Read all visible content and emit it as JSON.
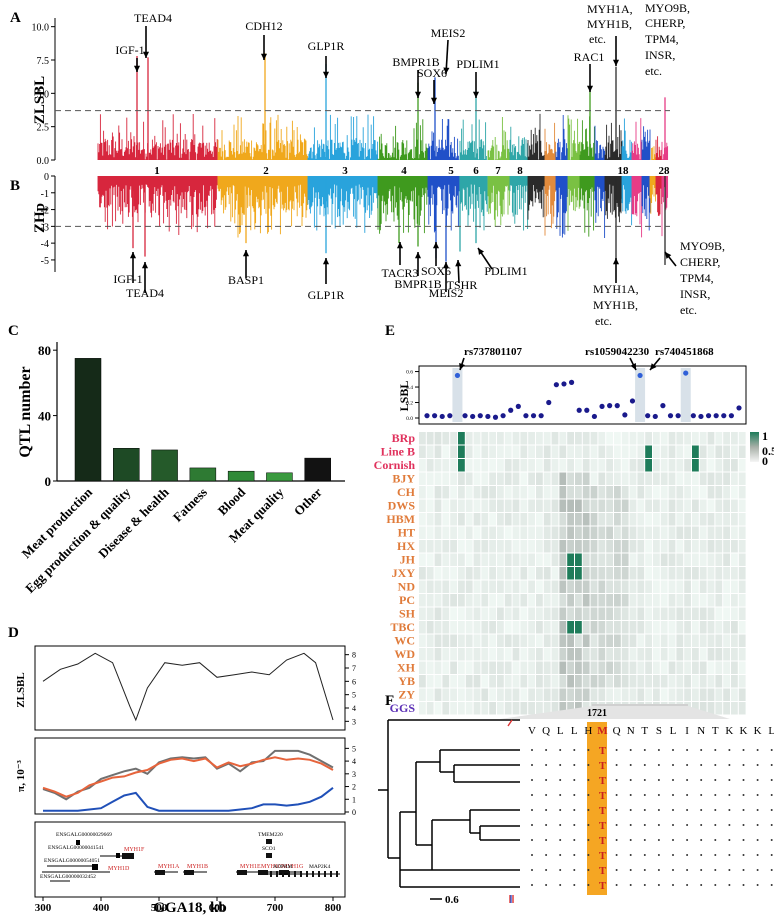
{
  "panels": {
    "a": "A",
    "b": "B",
    "c": "C",
    "d": "D",
    "e": "E",
    "f": "F"
  },
  "colors": {
    "chr": [
      "#d7263d",
      "#f0a81c",
      "#29a3dc",
      "#3f9a1e",
      "#2050c8",
      "#2ea6a8",
      "#7ac143",
      "#2b2b2b",
      "#e28b3c",
      "#7ac143",
      "#e63c86",
      "#1f2bd0",
      "#ff9a2e",
      "#7b4ea3"
    ],
    "dark_green": "#152a18",
    "heat_high": "#1e7c5a",
    "pink_label": "#e0315c",
    "orange_label": "#e07b3a",
    "purple_label": "#5b2fb5",
    "gene_red": "#cc2020",
    "blue_line": "#2050b8",
    "red_line": "#e6643c",
    "grey_line": "#707070",
    "highlight": "#f5a623"
  },
  "panel_a": {
    "ylabel": "ZLSBL",
    "yticks": [
      "0.0",
      "2.5",
      "5.0",
      "7.5",
      "10.0"
    ],
    "threshold": 3.7,
    "chromosomes": [
      "1",
      "2",
      "3",
      "4",
      "5",
      "6",
      "7",
      "8",
      "18",
      "28"
    ],
    "annotations": [
      "TEAD4",
      "IGF-1",
      "CDH12",
      "GLP1R",
      "MEIS2",
      "BMPR1B",
      "PDLIM1",
      "SOX6",
      "RAC1",
      "MYH1A,",
      "MYH1B,",
      "etc.",
      "MYO9B,",
      "CHERP,",
      "TPM4,",
      "INSR,",
      "etc."
    ]
  },
  "panel_b": {
    "ylabel": "ZHp",
    "yticks": [
      "0",
      "-1",
      "-2",
      "-3",
      "-4",
      "-5"
    ],
    "threshold": -3.0,
    "annotations": [
      "IGF-1",
      "TEAD4",
      "BASP1",
      "GLP1R",
      "TACR3",
      "BMPR1B",
      "SOX6",
      "MEIS2",
      "TSHR",
      "PDLIM1",
      "MYH1A,",
      "MYH1B,",
      "etc.",
      "MYO9B,",
      "CHERP,",
      "TPM4,",
      "INSR,",
      "etc."
    ]
  },
  "chart_data": [
    {
      "type": "bar",
      "ylabel": "QTL number",
      "categories": [
        "Meat production",
        "Egg production & quality",
        "Disease & health",
        "Fatness",
        "Blood",
        "Meat quality",
        "Other"
      ],
      "values": [
        75,
        20,
        19,
        8,
        6,
        5,
        14
      ],
      "yticks": [
        "0",
        "40",
        "80"
      ],
      "ylim": [
        0,
        85
      ],
      "colors": [
        "#152a18",
        "#1e4a25",
        "#255a2a",
        "#2e7a33",
        "#2f8a38",
        "#3a9a3f",
        "#121212"
      ]
    },
    {
      "type": "line",
      "ylabel": "ZLSBL",
      "x": [
        300,
        330,
        360,
        390,
        420,
        450,
        460,
        480,
        510,
        540,
        570,
        600,
        630,
        660,
        690,
        720,
        750,
        770,
        800
      ],
      "values": [
        6.0,
        6.9,
        7.3,
        8.1,
        7.4,
        4.1,
        3.1,
        5.5,
        7.4,
        7.2,
        7.4,
        6.3,
        6.5,
        6.7,
        6.5,
        7.6,
        8.1,
        7.4,
        3.1
      ],
      "yticks": [
        "3",
        "4",
        "5",
        "6",
        "7",
        "8"
      ],
      "ylim": [
        2.5,
        8.5
      ]
    },
    {
      "type": "line",
      "ylabel": "π, 10⁻³",
      "x": [
        300,
        320,
        340,
        360,
        380,
        400,
        420,
        440,
        460,
        480,
        500,
        520,
        540,
        560,
        580,
        600,
        620,
        640,
        660,
        680,
        700,
        720,
        740,
        760,
        780,
        800
      ],
      "series": [
        {
          "values": [
            1.8,
            1.5,
            1.0,
            1.6,
            1.9,
            2.6,
            2.9,
            3.2,
            3.4,
            3.0,
            3.9,
            4.2,
            4.3,
            4.2,
            4.3,
            3.4,
            3.8,
            3.2,
            3.9,
            4.0,
            4.8,
            4.8,
            4.8,
            4.5,
            4.0,
            3.5
          ]
        },
        {
          "values": [
            1.9,
            1.6,
            1.2,
            1.5,
            2.1,
            2.4,
            2.7,
            2.8,
            3.1,
            3.3,
            3.8,
            4.1,
            4.2,
            4.0,
            4.2,
            3.5,
            3.9,
            3.6,
            3.8,
            4.1,
            4.3,
            4.1,
            4.2,
            4.1,
            3.8,
            3.3
          ]
        },
        {
          "values": [
            0.1,
            0.1,
            0.1,
            0.1,
            0.2,
            0.3,
            0.8,
            1.3,
            1.5,
            0.4,
            0.1,
            0.1,
            0.1,
            0.1,
            0.1,
            0.1,
            0.1,
            0.2,
            0.3,
            0.6,
            0.6,
            0.5,
            0.6,
            0.8,
            1.2,
            1.9
          ]
        }
      ],
      "yticks": [
        "0",
        "1",
        "2",
        "3",
        "4",
        "5"
      ],
      "ylim": [
        0,
        5.5
      ],
      "xlabel": "GGA18, kb",
      "xticks": [
        "300",
        "400",
        "500",
        "600",
        "700",
        "800"
      ]
    },
    {
      "type": "scatter",
      "ylabel": "LSBL",
      "yticks": [
        "0.0",
        "0.2",
        "0.4",
        "0.6"
      ],
      "ylim": [
        0,
        0.62
      ],
      "values": [
        0.03,
        0.03,
        0.02,
        0.03,
        0.55,
        0.03,
        0.02,
        0.03,
        0.02,
        0.01,
        0.03,
        0.1,
        0.15,
        0.03,
        0.03,
        0.03,
        0.2,
        0.43,
        0.44,
        0.46,
        0.1,
        0.1,
        0.02,
        0.15,
        0.16,
        0.16,
        0.04,
        0.22,
        0.55,
        0.03,
        0.02,
        0.16,
        0.03,
        0.03,
        0.58,
        0.03,
        0.02,
        0.03,
        0.03,
        0.03,
        0.03,
        0.13
      ],
      "labels": [
        "rs737801107",
        "rs1059042230",
        "rs740451868"
      ]
    },
    {
      "type": "heatmap",
      "rows": [
        "BRp",
        "Line B",
        "Cornish",
        "BJY",
        "CH",
        "DWS",
        "HBM",
        "HT",
        "HX",
        "JH",
        "JXY",
        "ND",
        "PC",
        "SH",
        "TBC",
        "WC",
        "WD",
        "XH",
        "YB",
        "ZY",
        "GGS"
      ],
      "colorbar": [
        "0",
        "0.5",
        "1"
      ]
    }
  ],
  "panel_d_genes": {
    "black": [
      "ENSGALG00000029669",
      "ENSGALG00000041541",
      "ENSGALG00000054051",
      "ENSGALG00000032452",
      "TMEM220",
      "SCO1",
      "ADPRM",
      "MAP2K4"
    ],
    "red": [
      "MYH1F",
      "MYH1D",
      "MYH1A",
      "MYH1B",
      "MYH1E",
      "MYH1C",
      "MYH1G"
    ]
  },
  "panel_f": {
    "sequence": [
      "V",
      "Q",
      "L",
      "L",
      "H",
      "M",
      "Q",
      "N",
      "T",
      "S",
      "L",
      "I",
      "N",
      "T",
      "K",
      "K",
      "K",
      "L"
    ],
    "position": "1721",
    "substituted": "T",
    "scale": "0.6"
  }
}
